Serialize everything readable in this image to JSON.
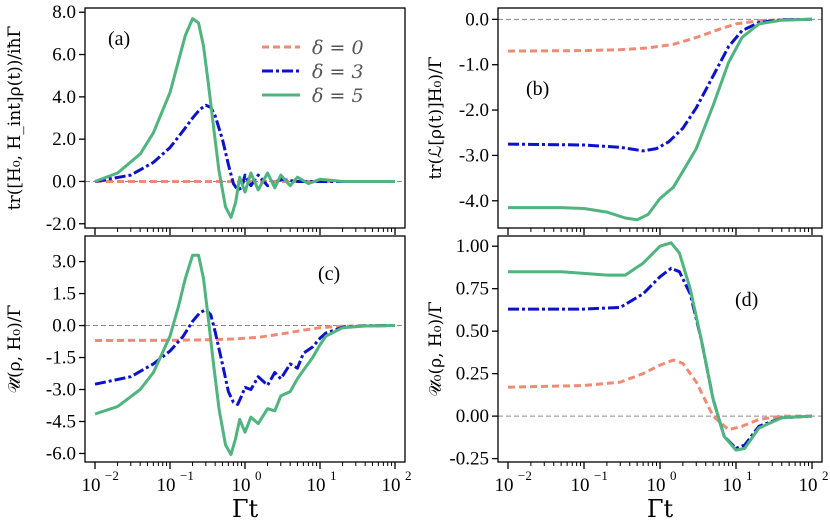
{
  "chart_data": [
    {
      "type": "line",
      "panel": "(a)",
      "ylabel": "tr([H₀, H_int]ρ(t))/iħΓ",
      "xlabel": "",
      "xscale": "log",
      "xlim": [
        0.01,
        100
      ],
      "ylim": [
        -2.2,
        8.2
      ],
      "yticks": [
        -2.0,
        0.0,
        2.0,
        4.0,
        6.0,
        8.0
      ],
      "ytick_labels": [
        "-2.0",
        "0.0",
        "2.0",
        "4.0",
        "6.0",
        "8.0"
      ],
      "hline": 0,
      "legend": {
        "placement": "top-right",
        "entries": [
          "δ = 0",
          "δ = 3",
          "δ = 5"
        ]
      },
      "series": [
        {
          "name": "δ = 0",
          "style": "dashed",
          "color": "#f08a75",
          "x": [
            0.01,
            0.1,
            1,
            10,
            100
          ],
          "y": [
            0,
            0,
            0,
            0,
            0
          ]
        },
        {
          "name": "δ = 3",
          "style": "dashdot",
          "color": "#0b12c9",
          "x": [
            0.01,
            0.03,
            0.06,
            0.1,
            0.15,
            0.2,
            0.25,
            0.3,
            0.35,
            0.4,
            0.5,
            0.6,
            0.7,
            0.8,
            0.9,
            1.0,
            1.2,
            1.5,
            2,
            3,
            5,
            10,
            100
          ],
          "y": [
            0,
            0.3,
            0.9,
            1.6,
            2.4,
            3.0,
            3.4,
            3.6,
            3.5,
            3.1,
            2.0,
            0.8,
            -0.1,
            -0.4,
            -0.3,
            0.3,
            -0.2,
            0.3,
            -0.2,
            0.1,
            0,
            0,
            0
          ]
        },
        {
          "name": "δ = 5",
          "style": "solid",
          "color": "#4fb47d",
          "x": [
            0.01,
            0.02,
            0.04,
            0.06,
            0.1,
            0.13,
            0.16,
            0.2,
            0.24,
            0.28,
            0.32,
            0.38,
            0.45,
            0.55,
            0.65,
            0.75,
            0.85,
            1.0,
            1.2,
            1.5,
            2,
            2.5,
            3,
            4,
            5,
            7,
            10,
            20,
            100
          ],
          "y": [
            0,
            0.4,
            1.3,
            2.3,
            4.2,
            5.7,
            6.9,
            7.7,
            7.5,
            6.4,
            4.8,
            2.6,
            0.5,
            -1.2,
            -1.7,
            -1.0,
            0.2,
            -0.5,
            0.4,
            -0.4,
            0.4,
            -0.3,
            0.3,
            -0.2,
            0.2,
            -0.1,
            0.1,
            0,
            0
          ]
        }
      ]
    },
    {
      "type": "line",
      "panel": "(b)",
      "ylabel": "tr(ℒ[ρ(t)]H₀)/Γ",
      "xlabel": "",
      "xscale": "log",
      "xlim": [
        0.01,
        100
      ],
      "ylim": [
        -4.6,
        0.25
      ],
      "yticks": [
        -4.0,
        -3.0,
        -2.0,
        -1.0,
        0.0
      ],
      "ytick_labels": [
        "-4.0",
        "-3.0",
        "-2.0",
        "-1.0",
        "0.0"
      ],
      "hline": 0,
      "series": [
        {
          "name": "δ = 0",
          "style": "dashed",
          "color": "#f08a75",
          "x": [
            0.01,
            0.1,
            0.3,
            0.7,
            1.5,
            3,
            6,
            10,
            20,
            40,
            100
          ],
          "y": [
            -0.7,
            -0.69,
            -0.67,
            -0.63,
            -0.55,
            -0.4,
            -0.22,
            -0.1,
            -0.03,
            -0.01,
            0
          ]
        },
        {
          "name": "δ = 3",
          "style": "dashdot",
          "color": "#0b12c9",
          "x": [
            0.01,
            0.1,
            0.3,
            0.6,
            0.9,
            1.3,
            2,
            3,
            5,
            8,
            12,
            20,
            40,
            100
          ],
          "y": [
            -2.75,
            -2.77,
            -2.82,
            -2.9,
            -2.85,
            -2.7,
            -2.4,
            -1.95,
            -1.25,
            -0.6,
            -0.25,
            -0.07,
            -0.01,
            0
          ]
        },
        {
          "name": "δ = 5",
          "style": "solid",
          "color": "#4fb47d",
          "x": [
            0.01,
            0.05,
            0.1,
            0.2,
            0.35,
            0.5,
            0.7,
            1.0,
            1.5,
            2,
            3,
            5,
            8,
            12,
            20,
            40,
            100
          ],
          "y": [
            -4.15,
            -4.15,
            -4.17,
            -4.25,
            -4.38,
            -4.42,
            -4.3,
            -3.95,
            -3.7,
            -3.35,
            -2.85,
            -1.9,
            -0.95,
            -0.4,
            -0.1,
            -0.02,
            0
          ]
        }
      ]
    },
    {
      "type": "line",
      "panel": "(c)",
      "ylabel": "𝒰̇(ρ, H₀)/Γ",
      "xlabel": "Γt",
      "xscale": "log",
      "xlim": [
        0.01,
        100
      ],
      "ylim": [
        -6.4,
        4.2
      ],
      "xticks": [
        0.01,
        0.1,
        1,
        10,
        100
      ],
      "xtick_labels": [
        "10",
        "10",
        "10",
        "10",
        "10"
      ],
      "xtick_exponents": [
        "−2",
        "−1",
        "0",
        "1",
        "2"
      ],
      "yticks": [
        -6.0,
        -4.5,
        -3.0,
        -1.5,
        0.0,
        1.5,
        3.0
      ],
      "ytick_labels": [
        "-6.0",
        "-4.5",
        "-3.0",
        "-1.5",
        "0.0",
        "1.5",
        "3.0"
      ],
      "hline": 0,
      "series": [
        {
          "name": "δ = 0",
          "style": "dashed",
          "color": "#f08a75",
          "x": [
            0.01,
            0.1,
            0.3,
            0.7,
            1.5,
            3,
            6,
            10,
            20,
            40,
            100
          ],
          "y": [
            -0.7,
            -0.69,
            -0.67,
            -0.63,
            -0.55,
            -0.4,
            -0.22,
            -0.1,
            -0.03,
            -0.01,
            0
          ]
        },
        {
          "name": "δ = 3",
          "style": "dashdot",
          "color": "#0b12c9",
          "x": [
            0.01,
            0.03,
            0.06,
            0.1,
            0.15,
            0.2,
            0.25,
            0.3,
            0.35,
            0.4,
            0.5,
            0.6,
            0.7,
            0.8,
            0.9,
            1.0,
            1.2,
            1.5,
            2,
            2.5,
            3,
            4,
            5,
            6,
            8,
            10,
            12,
            20,
            40,
            100
          ],
          "y": [
            -2.75,
            -2.4,
            -1.8,
            -1.2,
            -0.5,
            0.2,
            0.6,
            0.75,
            0.5,
            -0.3,
            -1.8,
            -3.1,
            -3.6,
            -3.7,
            -3.3,
            -2.9,
            -3.0,
            -2.4,
            -2.8,
            -2.2,
            -2.5,
            -1.8,
            -2.0,
            -1.3,
            -1.0,
            -0.6,
            -0.35,
            -0.08,
            -0.01,
            0
          ]
        },
        {
          "name": "δ = 5",
          "style": "solid",
          "color": "#4fb47d",
          "x": [
            0.01,
            0.02,
            0.04,
            0.06,
            0.1,
            0.13,
            0.16,
            0.2,
            0.24,
            0.28,
            0.32,
            0.38,
            0.45,
            0.55,
            0.65,
            0.75,
            0.85,
            1.0,
            1.2,
            1.5,
            2,
            2.5,
            3,
            4,
            5,
            6,
            8,
            10,
            12,
            20,
            40,
            100
          ],
          "y": [
            -4.15,
            -3.8,
            -3.0,
            -2.2,
            -0.5,
            0.9,
            2.2,
            3.3,
            3.3,
            2.2,
            0.5,
            -1.8,
            -3.9,
            -5.6,
            -6.05,
            -5.3,
            -4.4,
            -5.0,
            -4.3,
            -4.6,
            -3.9,
            -4.0,
            -3.3,
            -3.1,
            -2.5,
            -2.1,
            -1.5,
            -0.9,
            -0.5,
            -0.1,
            -0.02,
            0
          ]
        }
      ]
    },
    {
      "type": "line",
      "panel": "(d)",
      "ylabel": "𝒰̇₀(ρ, H₀)/Γ",
      "xlabel": "Γt",
      "xscale": "log",
      "xlim": [
        0.01,
        100
      ],
      "ylim": [
        -0.27,
        1.06
      ],
      "xticks": [
        0.01,
        0.1,
        1,
        10,
        100
      ],
      "xtick_labels": [
        "10",
        "10",
        "10",
        "10",
        "10"
      ],
      "xtick_exponents": [
        "−2",
        "−1",
        "0",
        "1",
        "2"
      ],
      "yticks": [
        -0.25,
        0.0,
        0.25,
        0.5,
        0.75,
        1.0
      ],
      "ytick_labels": [
        "-0.25",
        "0.00",
        "0.25",
        "0.50",
        "0.75",
        "1.00"
      ],
      "hline": 0,
      "series": [
        {
          "name": "δ = 0",
          "style": "dashed",
          "color": "#f08a75",
          "x": [
            0.01,
            0.1,
            0.3,
            0.6,
            1.0,
            1.5,
            2.0,
            3,
            5,
            8,
            12,
            20,
            40,
            100
          ],
          "y": [
            0.17,
            0.18,
            0.2,
            0.25,
            0.3,
            0.33,
            0.31,
            0.2,
            0.0,
            -0.08,
            -0.06,
            -0.02,
            0,
            0
          ]
        },
        {
          "name": "δ = 3",
          "style": "dashdot",
          "color": "#0b12c9",
          "x": [
            0.01,
            0.1,
            0.3,
            0.6,
            1.0,
            1.4,
            1.8,
            2.5,
            3.5,
            5,
            7,
            10,
            13,
            20,
            40,
            100
          ],
          "y": [
            0.63,
            0.63,
            0.64,
            0.72,
            0.82,
            0.87,
            0.85,
            0.72,
            0.45,
            0.1,
            -0.12,
            -0.19,
            -0.17,
            -0.06,
            -0.01,
            0
          ]
        },
        {
          "name": "δ = 5",
          "style": "solid",
          "color": "#4fb47d",
          "x": [
            0.01,
            0.05,
            0.1,
            0.2,
            0.35,
            0.6,
            1.0,
            1.4,
            1.8,
            2.5,
            3.5,
            5,
            7,
            10,
            13,
            20,
            40,
            100
          ],
          "y": [
            0.85,
            0.85,
            0.84,
            0.83,
            0.83,
            0.9,
            1.0,
            1.02,
            0.96,
            0.75,
            0.45,
            0.1,
            -0.12,
            -0.2,
            -0.19,
            -0.07,
            -0.01,
            0
          ]
        }
      ]
    }
  ]
}
